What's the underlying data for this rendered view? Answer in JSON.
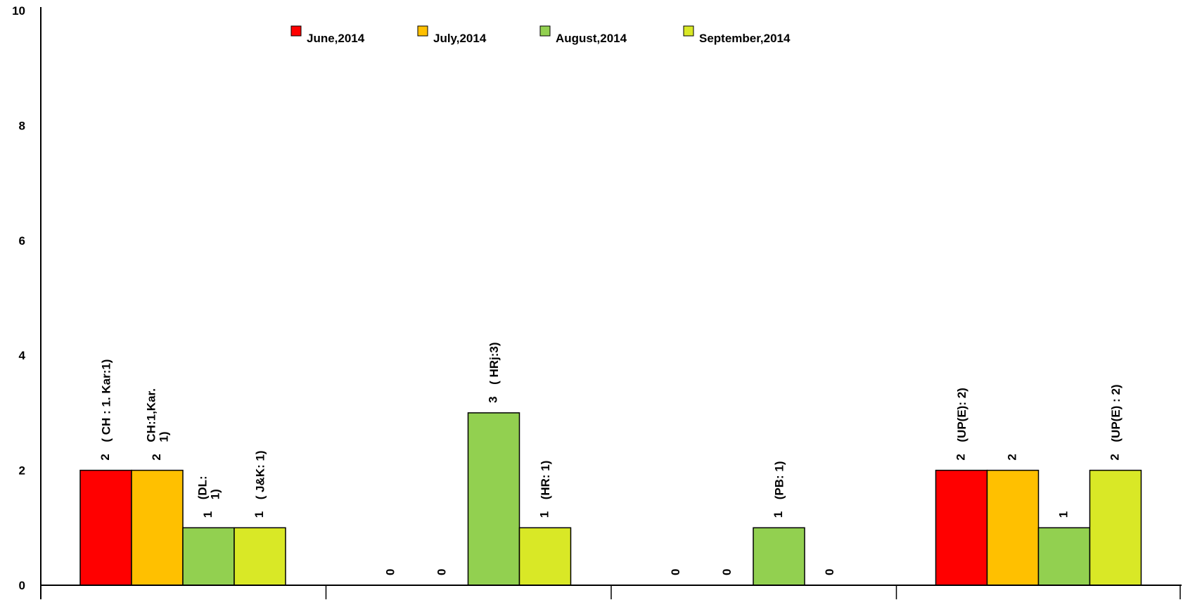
{
  "chart_data": {
    "type": "bar",
    "title": "",
    "xlabel": "",
    "ylabel": "",
    "ylim": [
      0,
      10
    ],
    "yticks": [
      0,
      2,
      4,
      6,
      8,
      10
    ],
    "ytick_labels": [
      "0",
      "2",
      "4",
      "6",
      "8",
      "10"
    ],
    "categories": [
      "",
      "",
      "",
      ""
    ],
    "legend_position": "top-center",
    "grid": false,
    "series": [
      {
        "name": "June,2014",
        "color": "#ff0000",
        "values": [
          2,
          0,
          0,
          2
        ],
        "value_labels": [
          "2",
          "0",
          "0",
          "2"
        ],
        "annotations": [
          [
            "( CH : 1. Kar:1)"
          ],
          [],
          [],
          [
            "(UP(E): 2)"
          ]
        ]
      },
      {
        "name": "July,2014",
        "color": "#ffc000",
        "values": [
          2,
          0,
          0,
          2
        ],
        "value_labels": [
          "2",
          "0",
          "0",
          "2"
        ],
        "annotations": [
          [
            "CH:1,Kar.",
            "1)"
          ],
          [],
          [],
          []
        ]
      },
      {
        "name": "August,2014",
        "color": "#92d050",
        "values": [
          1,
          3,
          1,
          1
        ],
        "value_labels": [
          "1",
          "3",
          "1",
          "1"
        ],
        "annotations": [
          [
            "(DL:",
            "1)"
          ],
          [
            "( HRj:3)"
          ],
          [
            "(PB: 1)"
          ],
          []
        ]
      },
      {
        "name": "September,2014",
        "color": "#d9e826",
        "values": [
          1,
          1,
          0,
          2
        ],
        "value_labels": [
          "1",
          "1",
          "0",
          "2"
        ],
        "annotations": [
          [
            "( J&K: 1)"
          ],
          [
            "(HR: 1)"
          ],
          [],
          [
            "(UP(E) : 2)"
          ]
        ]
      }
    ]
  }
}
